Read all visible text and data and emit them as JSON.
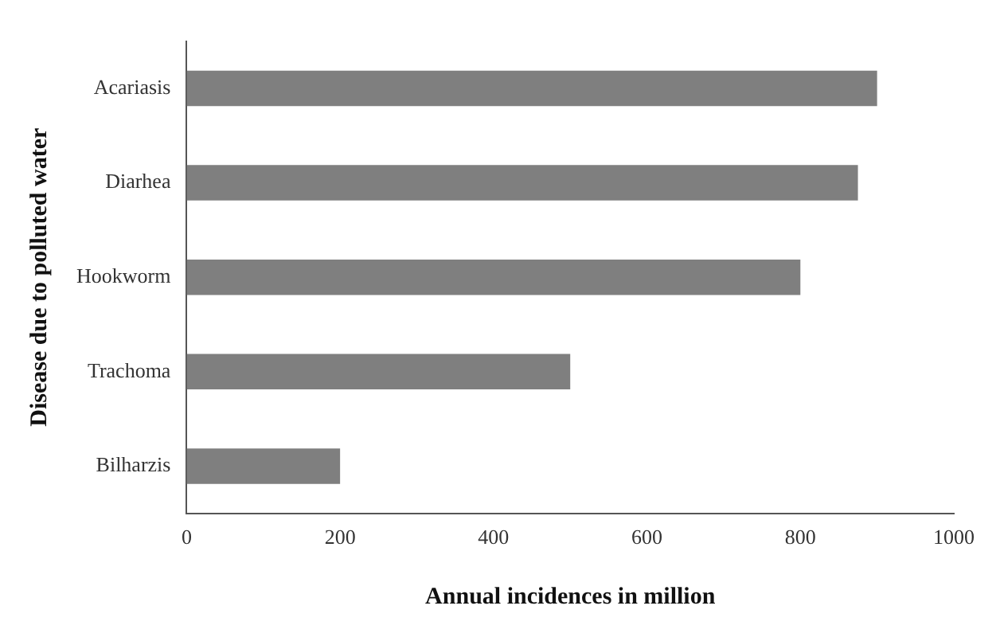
{
  "chart_data": {
    "type": "bar",
    "orientation": "horizontal",
    "categories": [
      "Acariasis",
      "Diarhea",
      "Hookworm",
      "Trachoma",
      "Bilharzis"
    ],
    "values": [
      900,
      875,
      800,
      500,
      200
    ],
    "color": "#7f7f7f",
    "xlabel": "Annual incidences in million",
    "ylabel": "Disease due to polluted water",
    "xlim": [
      0,
      1000
    ],
    "xticks": [
      0,
      200,
      400,
      600,
      800,
      1000
    ],
    "grid": false,
    "legend": false
  }
}
